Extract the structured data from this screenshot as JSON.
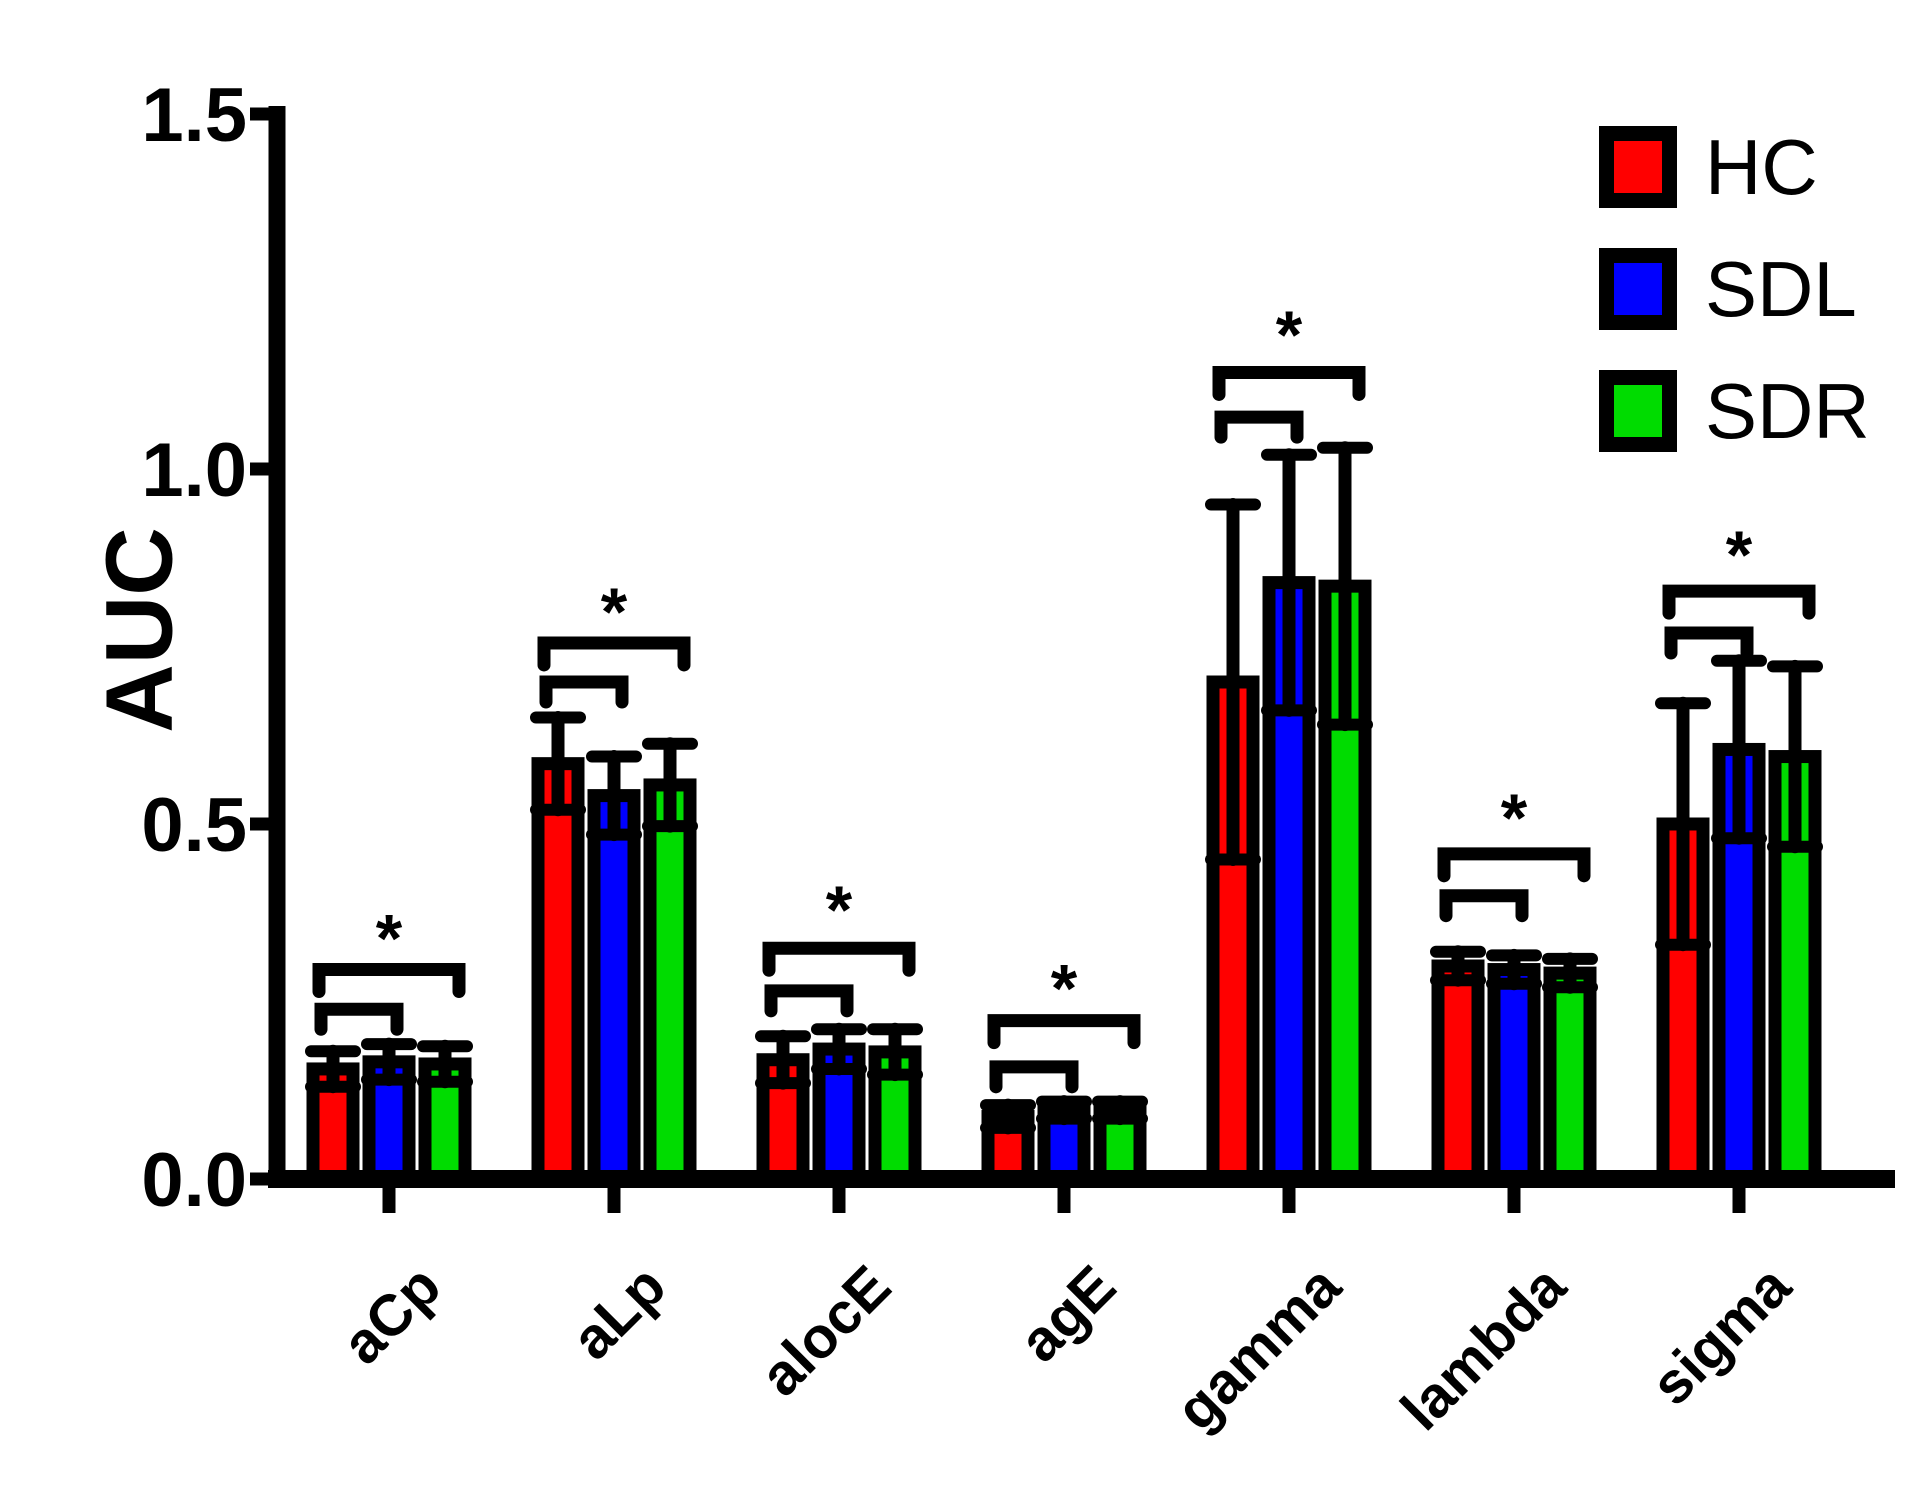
{
  "chart_data": {
    "type": "bar",
    "title": "",
    "ylabel": "AUC",
    "xlabel": "",
    "categories": [
      "aCp",
      "aLp",
      "alocE",
      "agE",
      "gamma",
      "lambda",
      "sigma"
    ],
    "ylim": [
      0,
      1.5
    ],
    "y_ticks": [
      0.0,
      0.5,
      1.0,
      1.5
    ],
    "y_tick_labels": [
      "0.0",
      "0.5",
      "1.0",
      "1.5"
    ],
    "grid": false,
    "legend_position": "top-right",
    "error_bars": "SD, both directions, with caps",
    "series": [
      {
        "name": "HC",
        "color": "#FF0000",
        "values": [
          0.155,
          0.585,
          0.168,
          0.088,
          0.7,
          0.3,
          0.5
        ],
        "sd": [
          0.025,
          0.065,
          0.033,
          0.016,
          0.25,
          0.02,
          0.17
        ]
      },
      {
        "name": "SDL",
        "color": "#0000FF",
        "values": [
          0.165,
          0.54,
          0.183,
          0.097,
          0.84,
          0.295,
          0.605
        ],
        "sd": [
          0.025,
          0.055,
          0.028,
          0.012,
          0.18,
          0.02,
          0.125
        ]
      },
      {
        "name": "SDR",
        "color": "#00DC00",
        "values": [
          0.162,
          0.555,
          0.179,
          0.097,
          0.835,
          0.29,
          0.595
        ],
        "sd": [
          0.025,
          0.058,
          0.032,
          0.012,
          0.195,
          0.02,
          0.127
        ]
      }
    ],
    "significance": [
      {
        "category": "aCp",
        "star": "*",
        "inner_between": [
          "HC",
          "SDL"
        ],
        "outer_between": [
          "HC",
          "SDR"
        ],
        "inner_top": 0.239,
        "outer_top": 0.295,
        "star_y": 0.34
      },
      {
        "category": "aLp",
        "star": "*",
        "inner_between": [
          "HC",
          "SDL"
        ],
        "outer_between": [
          "HC",
          "SDR"
        ],
        "inner_top": 0.7,
        "outer_top": 0.755,
        "star_y": 0.8
      },
      {
        "category": "alocE",
        "star": "*",
        "inner_between": [
          "HC",
          "SDL"
        ],
        "outer_between": [
          "HC",
          "SDR"
        ],
        "inner_top": 0.265,
        "outer_top": 0.325,
        "star_y": 0.38
      },
      {
        "category": "agE",
        "star": "*",
        "inner_between": [
          "HC",
          "SDL"
        ],
        "outer_between": [
          "HC",
          "SDR"
        ],
        "inner_top": 0.158,
        "outer_top": 0.223,
        "star_y": 0.27
      },
      {
        "category": "gamma",
        "star": "*",
        "inner_between": [
          "HC",
          "SDL"
        ],
        "outer_between": [
          "HC",
          "SDR"
        ],
        "inner_top": 1.073,
        "outer_top": 1.136,
        "star_y": 1.19
      },
      {
        "category": "lambda",
        "star": "*",
        "inner_between": [
          "HC",
          "SDL"
        ],
        "outer_between": [
          "HC",
          "SDR"
        ],
        "inner_top": 0.399,
        "outer_top": 0.458,
        "star_y": 0.51
      },
      {
        "category": "sigma",
        "star": "*",
        "inner_between": [
          "HC",
          "SDL"
        ],
        "outer_between": [
          "HC",
          "SDR"
        ],
        "inner_top": 0.769,
        "outer_top": 0.828,
        "star_y": 0.88
      }
    ]
  },
  "colors": {
    "axis": "#000000",
    "background": "#FFFFFF",
    "text": "#000000"
  }
}
